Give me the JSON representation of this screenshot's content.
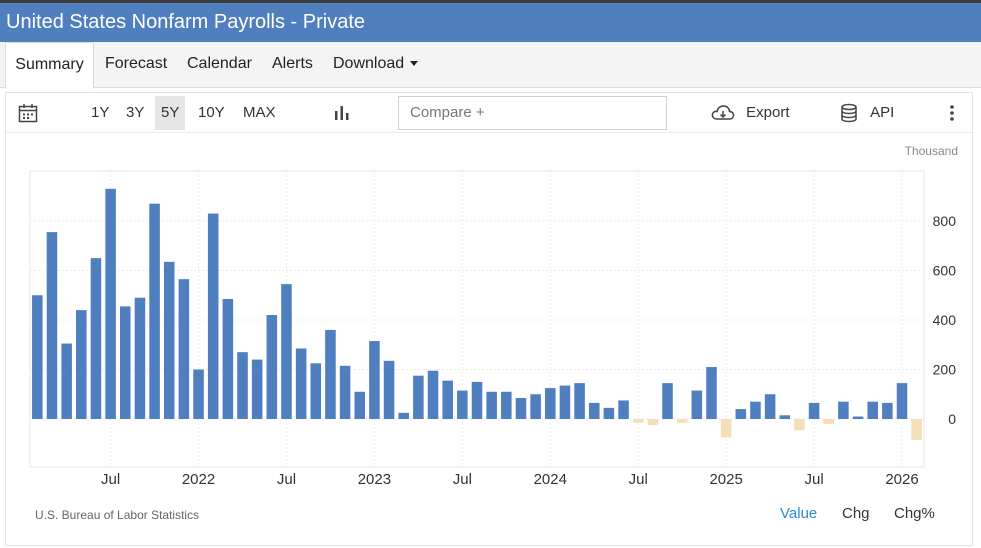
{
  "page": {
    "title": "United States Nonfarm Payrolls - Private"
  },
  "tabs": [
    {
      "label": "Summary",
      "active": true
    },
    {
      "label": "Forecast"
    },
    {
      "label": "Calendar"
    },
    {
      "label": "Alerts"
    },
    {
      "label": "Download"
    }
  ],
  "toolbar": {
    "ranges": [
      "1Y",
      "3Y",
      "5Y",
      "10Y",
      "MAX"
    ],
    "active_range": "5Y",
    "compare_placeholder": "Compare +",
    "export_label": "Export",
    "api_label": "API"
  },
  "footer": {
    "source": "U.S. Bureau of Labor Statistics",
    "modes": [
      "Value",
      "Chg",
      "Chg%"
    ],
    "active_mode": "Value"
  },
  "colors": {
    "positive": "#4f7fbf",
    "negative": "#f3dfb8",
    "header": "#4f7fbf",
    "active_mode": "#2b8ad8"
  },
  "chart_data": {
    "type": "bar",
    "title": "United States Nonfarm Payrolls - Private",
    "unit": "Thousand",
    "ylim": [
      -200,
      1000
    ],
    "yticks": [
      0,
      200,
      400,
      600,
      800
    ],
    "grid": true,
    "x_labels": [
      {
        "label": "Jul",
        "index": 5
      },
      {
        "label": "2022",
        "index": 11
      },
      {
        "label": "Jul",
        "index": 17
      },
      {
        "label": "2023",
        "index": 23
      },
      {
        "label": "Jul",
        "index": 29
      },
      {
        "label": "2024",
        "index": 35
      },
      {
        "label": "Jul",
        "index": 41
      },
      {
        "label": "2025",
        "index": 47
      },
      {
        "label": "Jul",
        "index": 53
      },
      {
        "label": "2026",
        "index": 59
      }
    ],
    "values": [
      500,
      755,
      305,
      440,
      650,
      930,
      455,
      490,
      870,
      635,
      565,
      200,
      830,
      485,
      270,
      240,
      420,
      545,
      285,
      225,
      360,
      215,
      110,
      315,
      235,
      25,
      175,
      195,
      155,
      115,
      150,
      110,
      110,
      85,
      100,
      125,
      135,
      145,
      65,
      45,
      75,
      -15,
      -25,
      145,
      -15,
      115,
      210,
      -75,
      40,
      70,
      100,
      15,
      -45,
      65,
      -20,
      70,
      10,
      70,
      65,
      145,
      -85
    ]
  }
}
